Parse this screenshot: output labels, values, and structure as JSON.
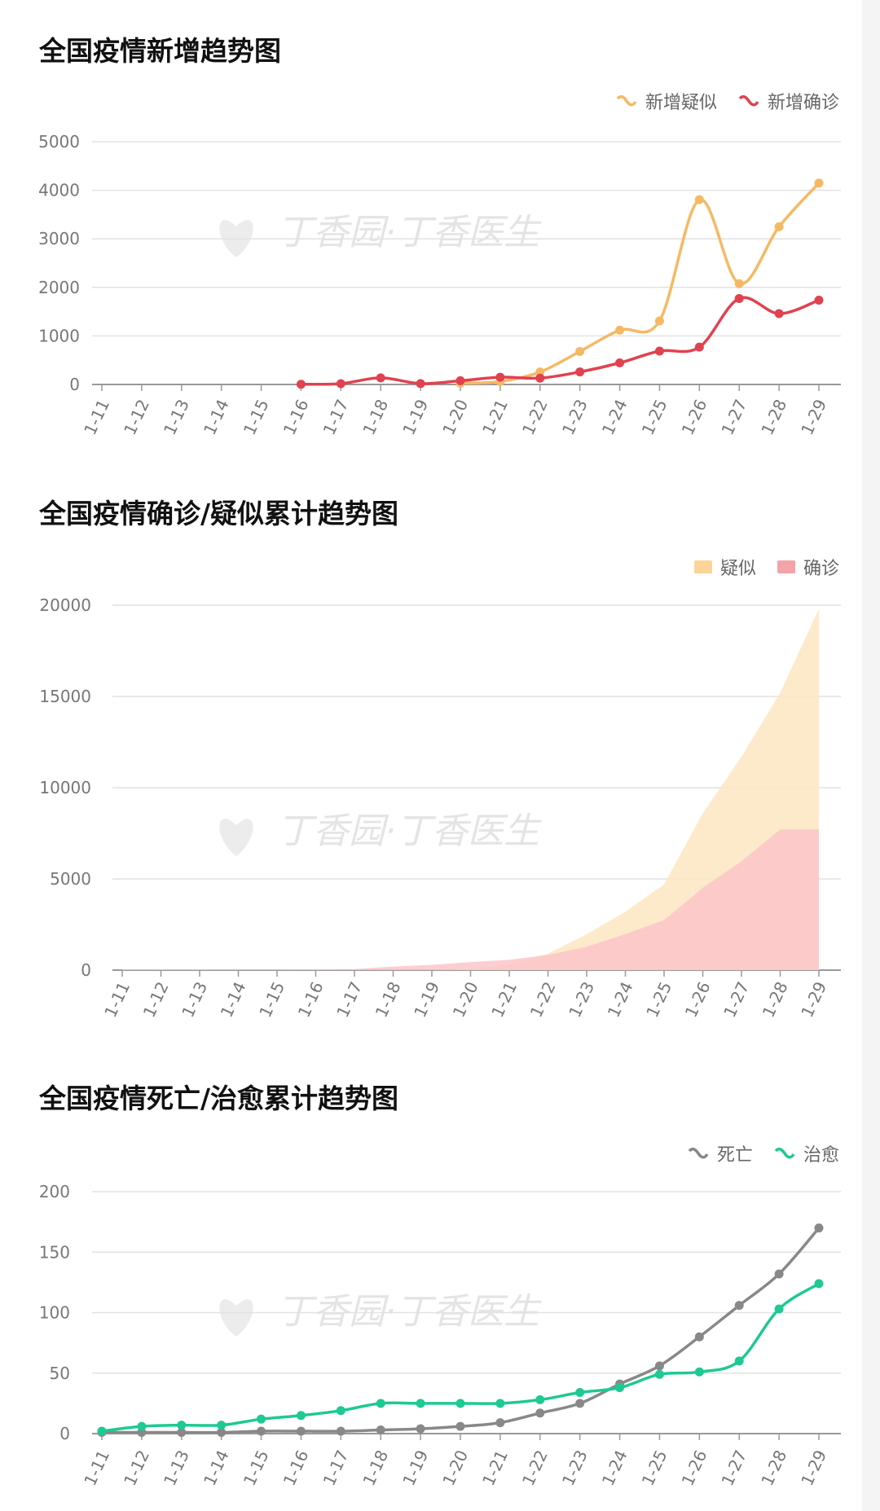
{
  "chart_data": [
    {
      "type": "line",
      "title": "全国疫情新增趋势图",
      "categories": [
        "1-11",
        "1-12",
        "1-13",
        "1-14",
        "1-15",
        "1-16",
        "1-17",
        "1-18",
        "1-19",
        "1-20",
        "1-21",
        "1-22",
        "1-23",
        "1-24",
        "1-25",
        "1-26",
        "1-27",
        "1-28",
        "1-29"
      ],
      "series": [
        {
          "name": "新增疑似",
          "color": "#f5b964",
          "values": [
            null,
            null,
            null,
            null,
            null,
            null,
            null,
            null,
            null,
            27,
            60,
            257,
            680,
            1118,
            1309,
            3806,
            2077,
            3248,
            4148
          ]
        },
        {
          "name": "新增确诊",
          "color": "#e0424f",
          "values": [
            null,
            null,
            null,
            null,
            null,
            4,
            17,
            136,
            19,
            77,
            149,
            131,
            259,
            444,
            688,
            769,
            1771,
            1459,
            1737
          ]
        }
      ],
      "yticks": [
        "0",
        "1000",
        "2000",
        "3000",
        "4000",
        "5000"
      ],
      "ylim": [
        0,
        5000
      ],
      "grid": true,
      "legend": "top-right",
      "watermark": "丁香园·丁香医生"
    },
    {
      "type": "area",
      "title": "全国疫情确诊/疑似累计趋势图",
      "categories": [
        "1-11",
        "1-12",
        "1-13",
        "1-14",
        "1-15",
        "1-16",
        "1-17",
        "1-18",
        "1-19",
        "1-20",
        "1-21",
        "1-22",
        "1-23",
        "1-24",
        "1-25",
        "1-26",
        "1-27",
        "1-28",
        "1-29"
      ],
      "series": [
        {
          "name": "疑似",
          "color": "#fde6c2",
          "values": [
            0,
            0,
            0,
            0,
            0,
            0,
            0,
            0,
            0,
            54,
            300,
            900,
            1970,
            3200,
            4700,
            8600,
            11700,
            15200,
            19800
          ]
        },
        {
          "name": "确诊",
          "color": "#fbc6c9",
          "values": [
            41,
            41,
            41,
            41,
            41,
            45,
            62,
            198,
            291,
            440,
            571,
            830,
            1287,
            1975,
            2744,
            4515,
            5974,
            7711,
            7711
          ]
        }
      ],
      "yticks": [
        "0",
        "5000",
        "10000",
        "15000",
        "20000"
      ],
      "ylim": [
        0,
        20000
      ],
      "grid": true,
      "legend": "top-right",
      "watermark": "丁香园·丁香医生"
    },
    {
      "type": "line",
      "title": "全国疫情死亡/治愈累计趋势图",
      "categories": [
        "1-11",
        "1-12",
        "1-13",
        "1-14",
        "1-15",
        "1-16",
        "1-17",
        "1-18",
        "1-19",
        "1-20",
        "1-21",
        "1-22",
        "1-23",
        "1-24",
        "1-25",
        "1-26",
        "1-27",
        "1-28",
        "1-29"
      ],
      "series": [
        {
          "name": "死亡",
          "color": "#888888",
          "values": [
            1,
            1,
            1,
            1,
            2,
            2,
            2,
            3,
            4,
            6,
            9,
            17,
            25,
            41,
            56,
            80,
            106,
            132,
            170
          ]
        },
        {
          "name": "治愈",
          "color": "#1ec993",
          "values": [
            2,
            6,
            7,
            7,
            12,
            15,
            19,
            25,
            25,
            25,
            25,
            28,
            34,
            38,
            49,
            51,
            60,
            103,
            124
          ]
        }
      ],
      "yticks": [
        "0",
        "50",
        "100",
        "150",
        "200"
      ],
      "ylim": [
        0,
        200
      ],
      "grid": true,
      "legend": "top-right",
      "watermark": "丁香园·丁香医生"
    }
  ]
}
